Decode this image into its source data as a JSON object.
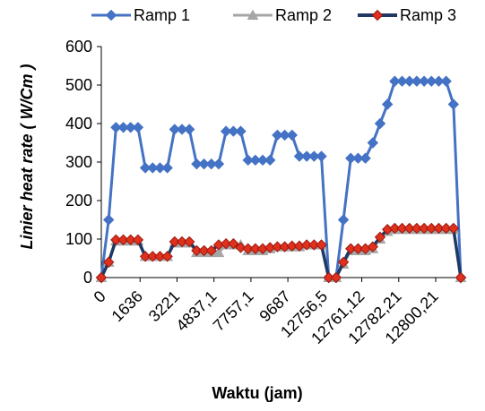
{
  "chart_data": {
    "type": "line",
    "xlabel": "Waktu (jam)",
    "ylabel": "Linier heat rate ( W/Cm )",
    "ylim": [
      0,
      600
    ],
    "yticks": [
      "0",
      "100",
      "200",
      "300",
      "400",
      "500",
      "600"
    ],
    "xtick_labels": [
      "0",
      "1636",
      "3221",
      "4837,1",
      "7757,1",
      "9687",
      "12756,5",
      "12761,12",
      "12782,21",
      "12800,21"
    ],
    "grid": false,
    "legend_position": "top",
    "series": [
      {
        "name": "Ramp 1",
        "color": "#4472C4",
        "marker": "diamond",
        "values": [
          0,
          150,
          390,
          390,
          390,
          390,
          285,
          285,
          285,
          285,
          385,
          385,
          385,
          295,
          295,
          295,
          295,
          380,
          380,
          380,
          305,
          305,
          305,
          305,
          370,
          370,
          370,
          315,
          315,
          315,
          315,
          0,
          0,
          150,
          310,
          310,
          310,
          350,
          400,
          450,
          510,
          510,
          510,
          510,
          510,
          510,
          510,
          510,
          450,
          0
        ]
      },
      {
        "name": "Ramp 2",
        "color": "#A6A6A6",
        "marker": "triangle",
        "values": [
          0,
          40,
          95,
          95,
          95,
          95,
          55,
          55,
          55,
          55,
          90,
          90,
          90,
          65,
          65,
          65,
          65,
          85,
          85,
          85,
          70,
          70,
          70,
          75,
          80,
          80,
          80,
          80,
          85,
          85,
          85,
          0,
          0,
          35,
          70,
          70,
          70,
          75,
          100,
          120,
          125,
          125,
          125,
          125,
          125,
          125,
          125,
          125,
          125,
          0
        ]
      },
      {
        "name": "Ramp 3",
        "color": "#1F3864",
        "marker": "diamond",
        "marker_fill": "#E0301E",
        "values": [
          0,
          40,
          98,
          98,
          98,
          98,
          55,
          55,
          55,
          55,
          93,
          93,
          93,
          70,
          70,
          70,
          85,
          88,
          88,
          78,
          75,
          75,
          75,
          78,
          80,
          80,
          82,
          82,
          85,
          85,
          85,
          0,
          0,
          40,
          75,
          75,
          75,
          80,
          105,
          125,
          128,
          128,
          128,
          128,
          128,
          128,
          128,
          128,
          128,
          0
        ]
      }
    ]
  }
}
